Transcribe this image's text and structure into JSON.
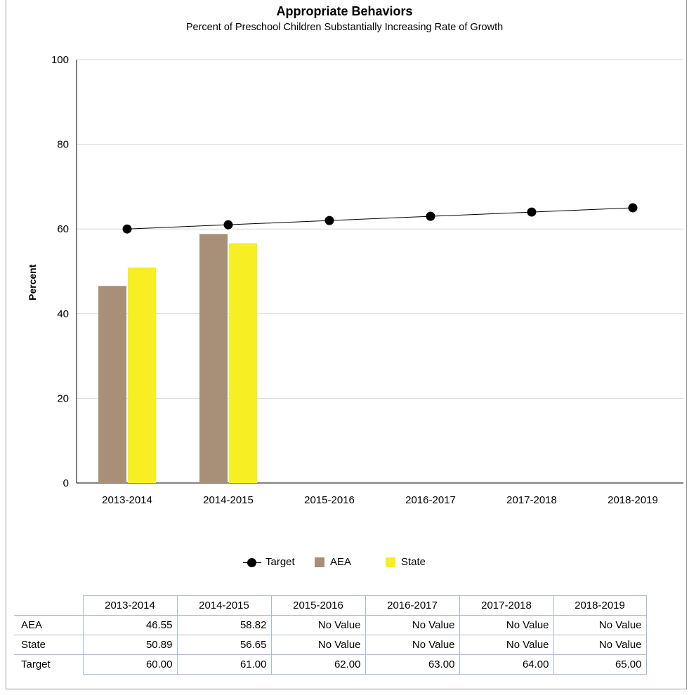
{
  "chart_data": {
    "type": "bar",
    "title": "Appropriate Behaviors",
    "subtitle": "Percent of Preschool Children Substantially Increasing Rate of Growth",
    "xlabel": "",
    "ylabel": "Percent",
    "ylim": [
      0,
      100
    ],
    "yticks": [
      0,
      20,
      40,
      60,
      80,
      100
    ],
    "grid": true,
    "legend_position": "bottom",
    "categories": [
      "2013-2014",
      "2014-2015",
      "2015-2016",
      "2016-2017",
      "2017-2018",
      "2018-2019"
    ],
    "series": [
      {
        "name": "AEA",
        "kind": "bar",
        "color": "#a89078",
        "values": [
          46.55,
          58.82,
          null,
          null,
          null,
          null
        ]
      },
      {
        "name": "State",
        "kind": "bar",
        "color": "#f7ef22",
        "values": [
          50.89,
          56.65,
          null,
          null,
          null,
          null
        ]
      },
      {
        "name": "Target",
        "kind": "line",
        "color": "#000000",
        "values": [
          60.0,
          61.0,
          62.0,
          63.0,
          64.0,
          65.0
        ]
      }
    ]
  },
  "table": {
    "headers": [
      "2013-2014",
      "2014-2015",
      "2015-2016",
      "2016-2017",
      "2017-2018",
      "2018-2019"
    ],
    "rows": [
      {
        "label": "AEA",
        "cells": [
          "46.55",
          "58.82",
          "No Value",
          "No Value",
          "No Value",
          "No Value"
        ]
      },
      {
        "label": "State",
        "cells": [
          "50.89",
          "56.65",
          "No Value",
          "No Value",
          "No Value",
          "No Value"
        ]
      },
      {
        "label": "Target",
        "cells": [
          "60.00",
          "61.00",
          "62.00",
          "63.00",
          "64.00",
          "65.00"
        ]
      }
    ]
  }
}
